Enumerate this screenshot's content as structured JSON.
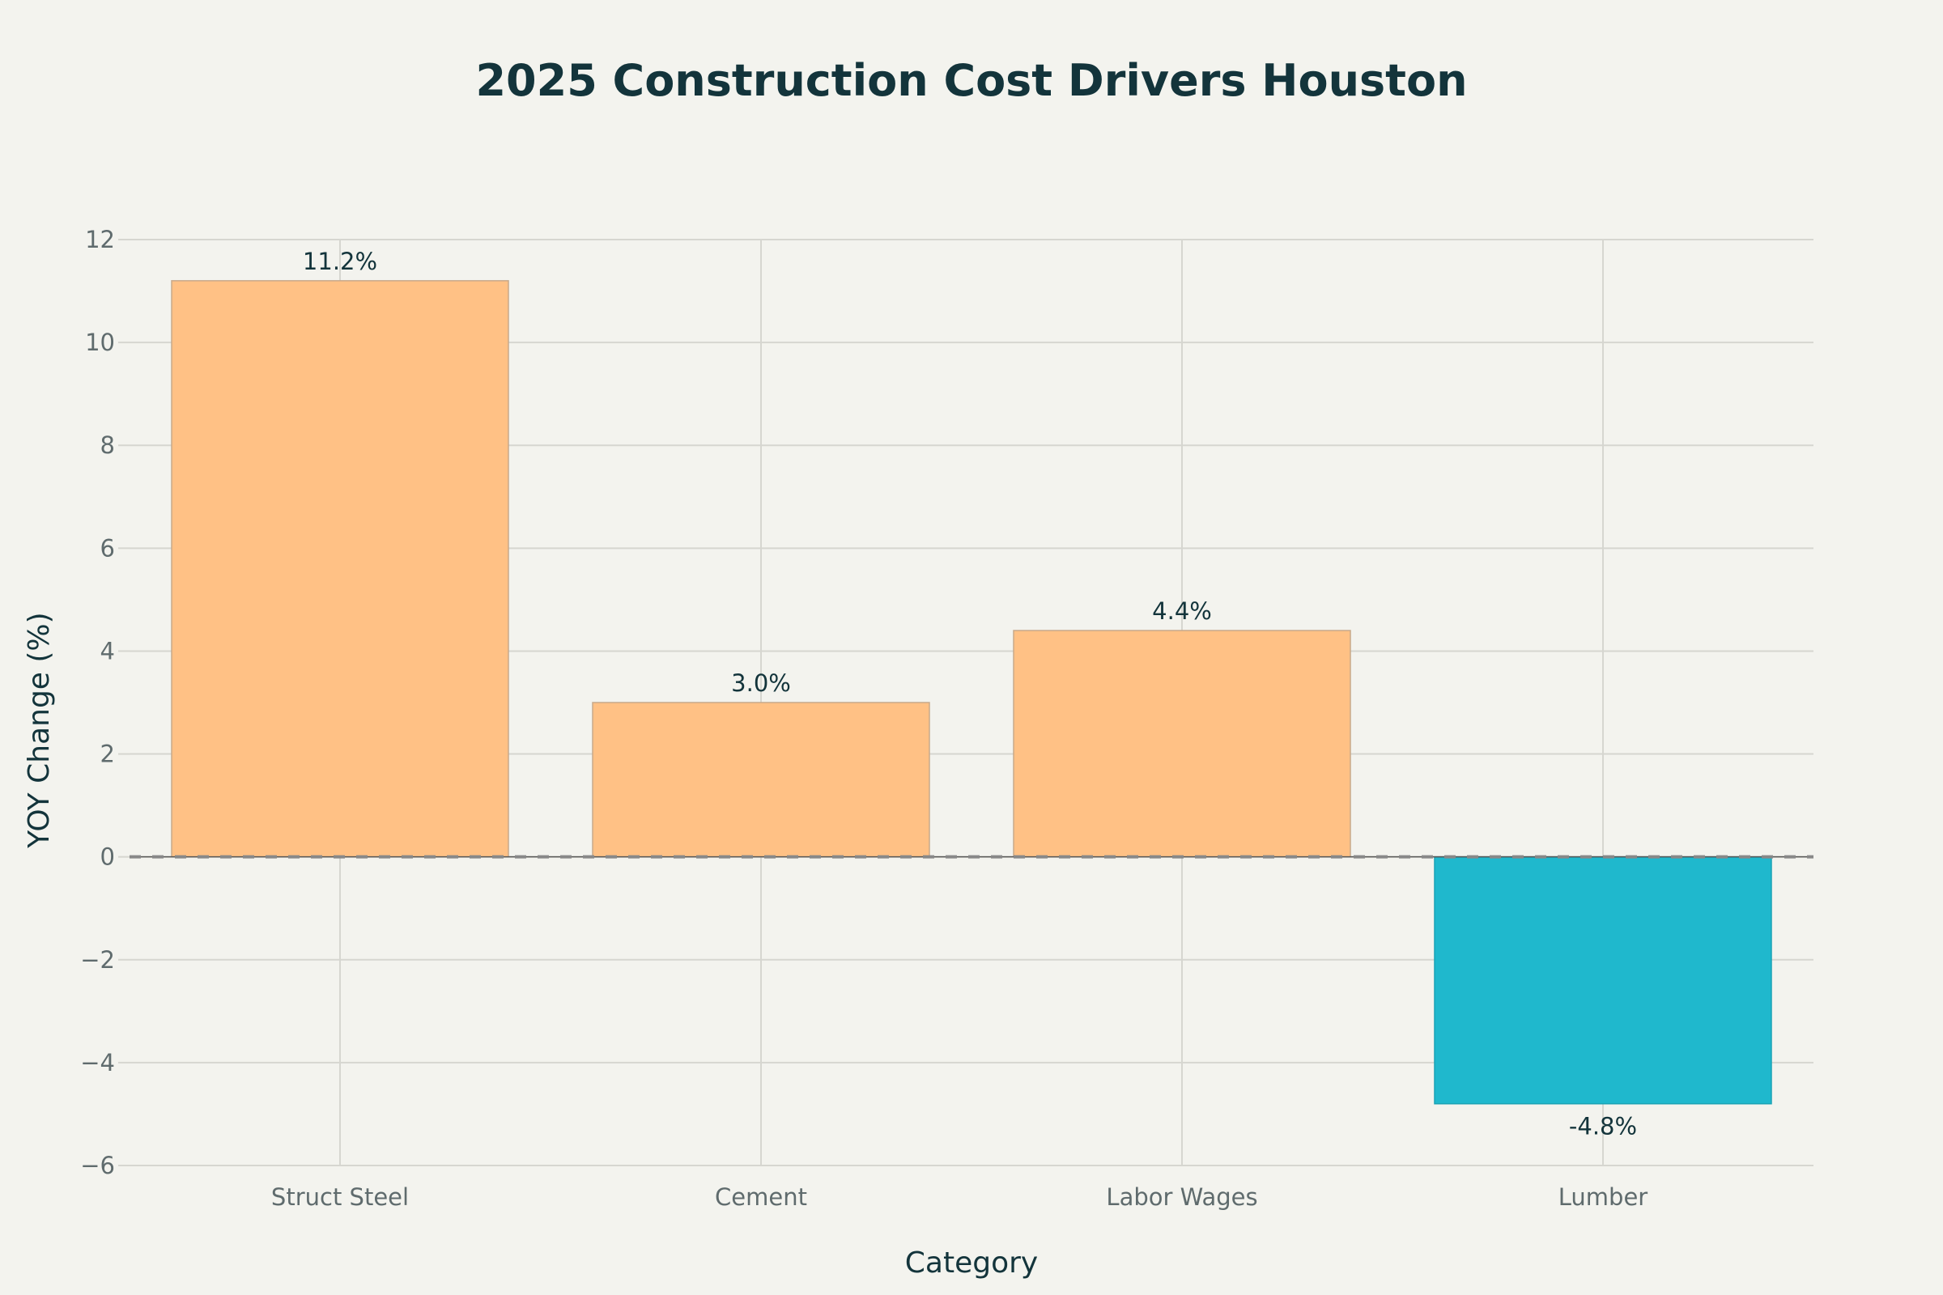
{
  "chart_data": {
    "type": "bar",
    "title": "2025 Construction Cost Drivers Houston",
    "xlabel": "Category",
    "ylabel": "YOY Change (%)",
    "categories": [
      "Struct Steel",
      "Cement",
      "Labor Wages",
      "Lumber"
    ],
    "values": [
      11.2,
      3.0,
      4.4,
      -4.8
    ],
    "value_labels": [
      "11.2%",
      "3.0%",
      "4.4%",
      "-4.8%"
    ],
    "ylim": [
      -6,
      12
    ],
    "yticks": [
      -6,
      -4,
      -2,
      0,
      2,
      4,
      6,
      8,
      10,
      12
    ],
    "ytick_labels": [
      "−6",
      "−4",
      "−2",
      "0",
      "2",
      "4",
      "6",
      "8",
      "10",
      "12"
    ],
    "grid": true,
    "zero_line": "dashed",
    "colors": {
      "positive": "#ffc185",
      "negative": "#1fb8cd",
      "bar_outline": "#c8a98a",
      "grid": "#d6d6d0",
      "zero_line": "#888888"
    }
  }
}
